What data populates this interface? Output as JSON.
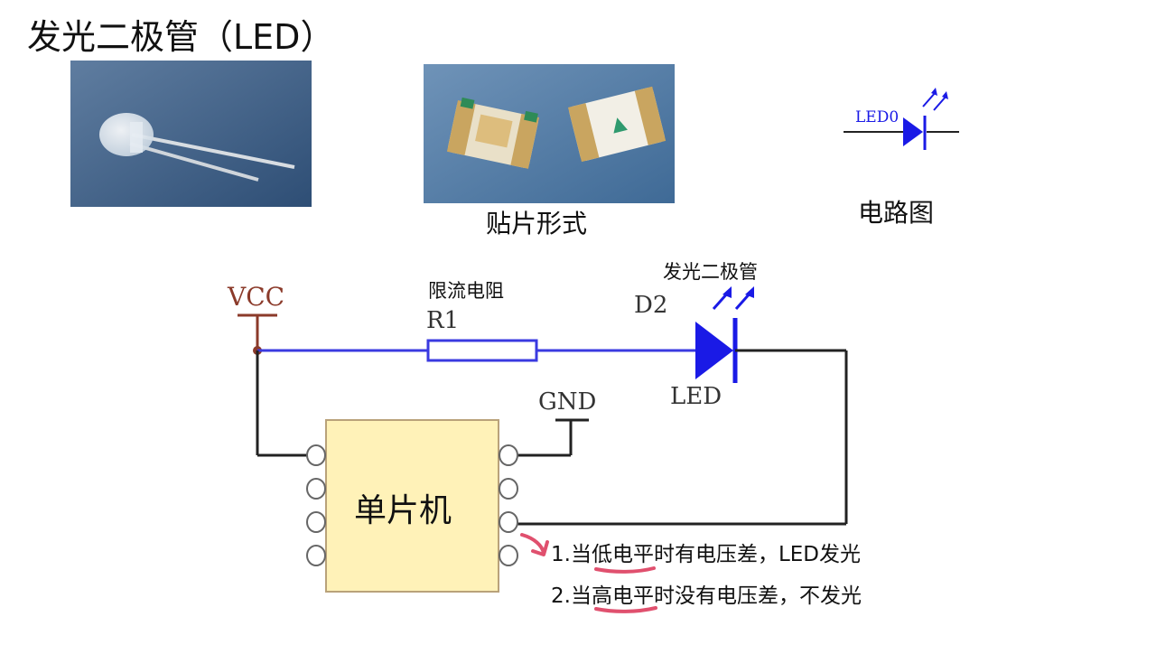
{
  "slide": {
    "title": "发光二极管（LED）",
    "captions": {
      "smd": "贴片形式",
      "schematic": "电路图"
    },
    "schematic_symbol": {
      "label": "LED0"
    },
    "circuit": {
      "vcc": "VCC",
      "gnd": "GND",
      "resistor_desc": "限流电阻",
      "resistor_ref": "R1",
      "diode_desc": "发光二极管",
      "diode_ref": "D2",
      "diode_label": "LED",
      "mcu_label": "单片机"
    },
    "notes": [
      {
        "prefix": "1.当",
        "highlight": "低电平",
        "rest": "时有电压差，LED发光"
      },
      {
        "prefix": "2.当",
        "highlight": "高电平",
        "rest": "时没有电压差，不发光"
      }
    ]
  }
}
